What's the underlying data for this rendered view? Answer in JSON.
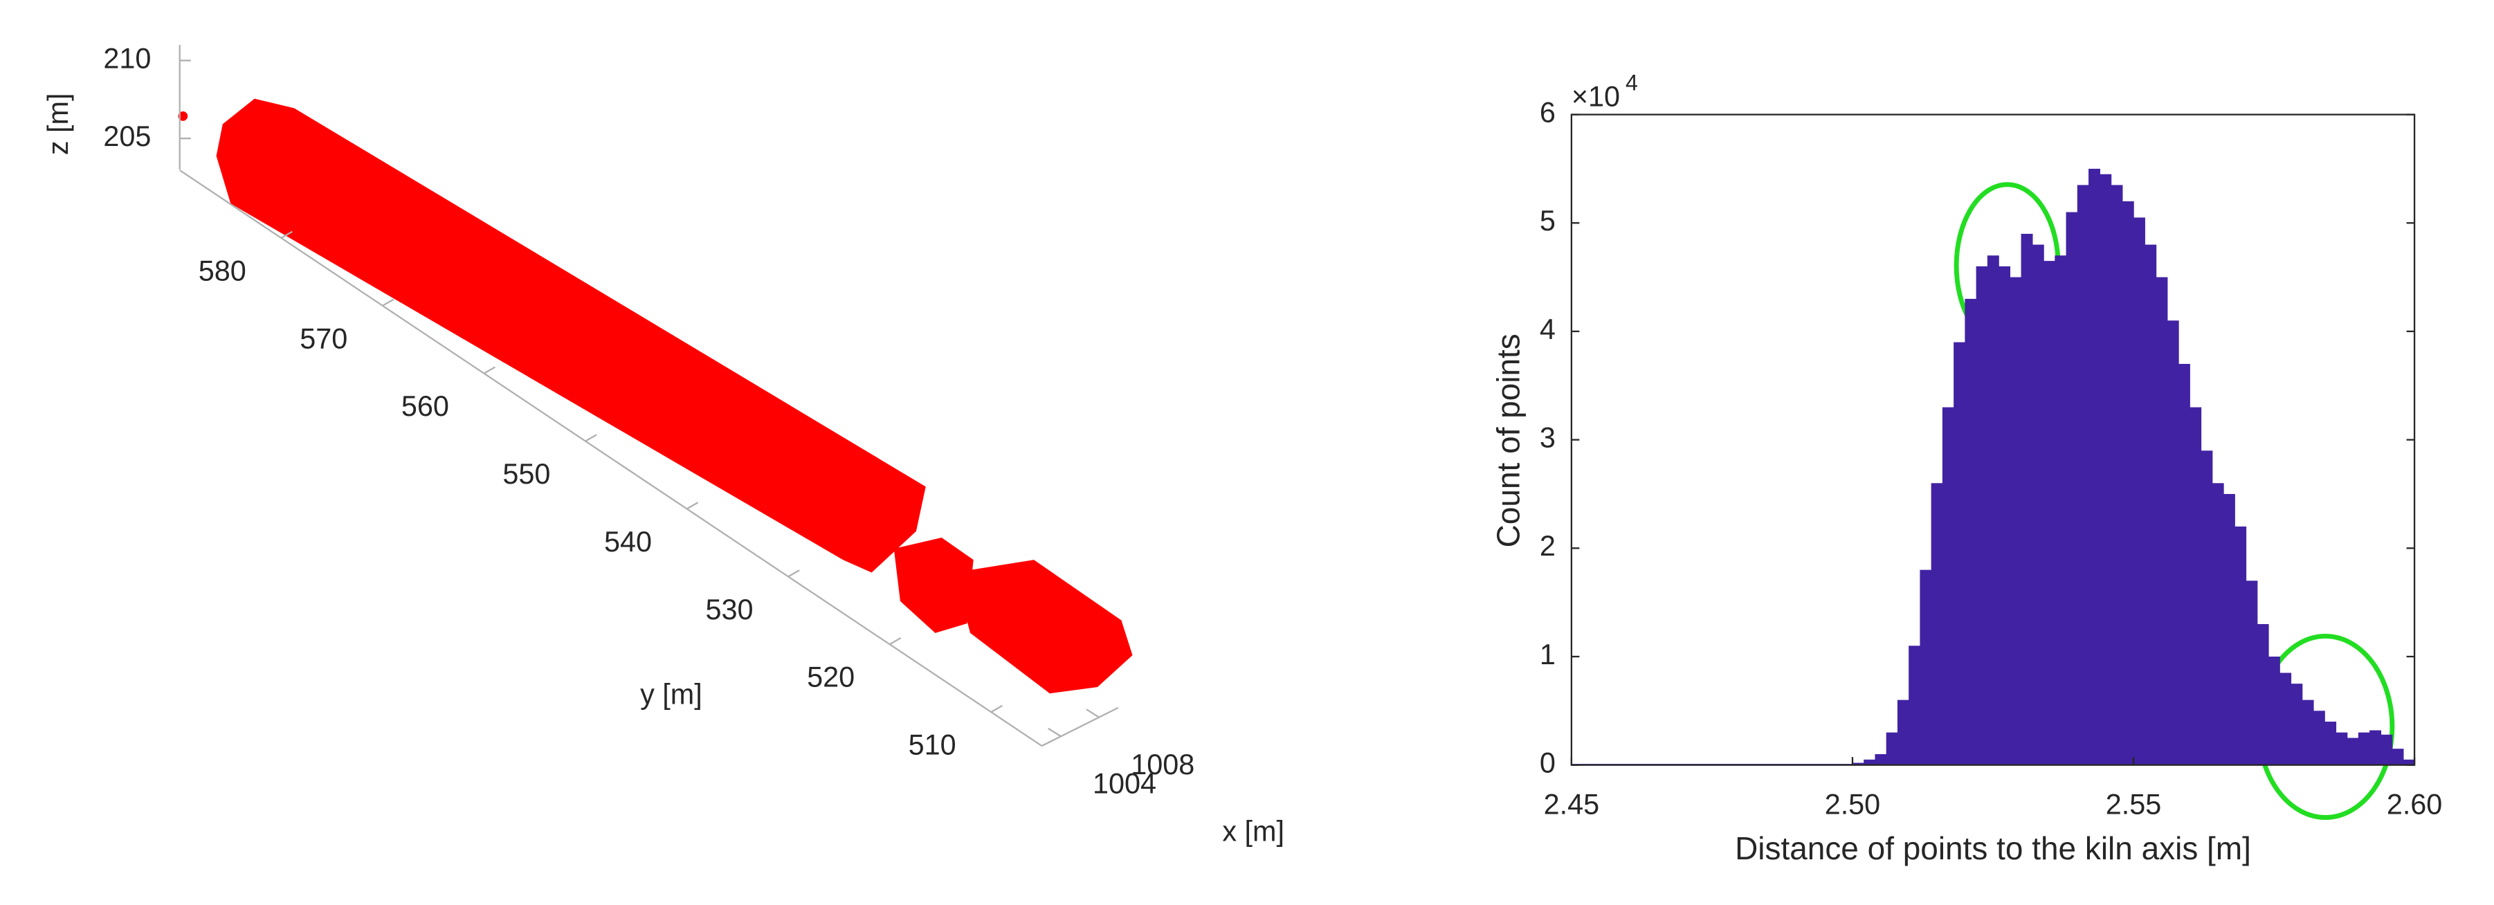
{
  "chart_data": [
    {
      "type": "scatter3d",
      "color": "#ff0000",
      "xlabel": "x [m]",
      "ylabel": "y [m]",
      "zlabel": "z [m]",
      "xlim": [
        1002,
        1010
      ],
      "xticks": [
        1004,
        1008
      ],
      "ylim": [
        505,
        590
      ],
      "yticks": [
        510,
        520,
        530,
        540,
        550,
        560,
        570,
        580
      ],
      "zlim": [
        203,
        211
      ],
      "zticks": [
        205,
        210
      ]
    },
    {
      "type": "histogram",
      "color": "#4122a3",
      "xlabel": "Distance of points to the kiln axis [m]",
      "ylabel": "Count of points",
      "y_multiplier": "×10",
      "y_multiplier_exponent": "4",
      "xlim": [
        2.45,
        2.6
      ],
      "xticks": [
        2.45,
        {
          "value": 2.5,
          "label": "2.50"
        },
        2.55,
        {
          "value": 2.6,
          "label": "2.60"
        }
      ],
      "ylim": [
        0,
        6
      ],
      "yticks": [
        0,
        1,
        2,
        3,
        4,
        5,
        6
      ],
      "bins": [
        2.45,
        2.452,
        2.454,
        2.456,
        2.458,
        2.46,
        2.462,
        2.464,
        2.466,
        2.468,
        2.47,
        2.472,
        2.474,
        2.476,
        2.478,
        2.48,
        2.482,
        2.484,
        2.486,
        2.488,
        2.49,
        2.492,
        2.494,
        2.496,
        2.498,
        2.5,
        2.502,
        2.504,
        2.506,
        2.508,
        2.51,
        2.512,
        2.514,
        2.516,
        2.518,
        2.52,
        2.522,
        2.524,
        2.526,
        2.528,
        2.53,
        2.532,
        2.534,
        2.536,
        2.538,
        2.54,
        2.542,
        2.544,
        2.546,
        2.548,
        2.55,
        2.552,
        2.554,
        2.556,
        2.558,
        2.56,
        2.562,
        2.564,
        2.566,
        2.568,
        2.57,
        2.572,
        2.574,
        2.576,
        2.578,
        2.58,
        2.582,
        2.584,
        2.586,
        2.588,
        2.59,
        2.592,
        2.594,
        2.596,
        2.598,
        2.6
      ],
      "counts": [
        0.01,
        0.01,
        0.01,
        0.01,
        0.01,
        0.01,
        0.01,
        0.01,
        0.01,
        0.01,
        0.01,
        0.01,
        0.01,
        0.01,
        0.01,
        0.01,
        0.01,
        0.01,
        0.01,
        0.01,
        0.01,
        0.01,
        0.01,
        0.01,
        0.01,
        0.02,
        0.05,
        0.1,
        0.3,
        0.6,
        1.1,
        1.8,
        2.6,
        3.3,
        3.9,
        4.3,
        4.6,
        4.7,
        4.6,
        4.5,
        4.9,
        4.8,
        4.65,
        4.7,
        5.1,
        5.35,
        5.5,
        5.45,
        5.35,
        5.2,
        5.05,
        4.8,
        4.5,
        4.1,
        3.7,
        3.3,
        2.9,
        2.6,
        2.5,
        2.2,
        1.7,
        1.3,
        1.0,
        0.85,
        0.75,
        0.6,
        0.5,
        0.4,
        0.3,
        0.25,
        0.3,
        0.32,
        0.28,
        0.15,
        0.05
      ]
    }
  ]
}
